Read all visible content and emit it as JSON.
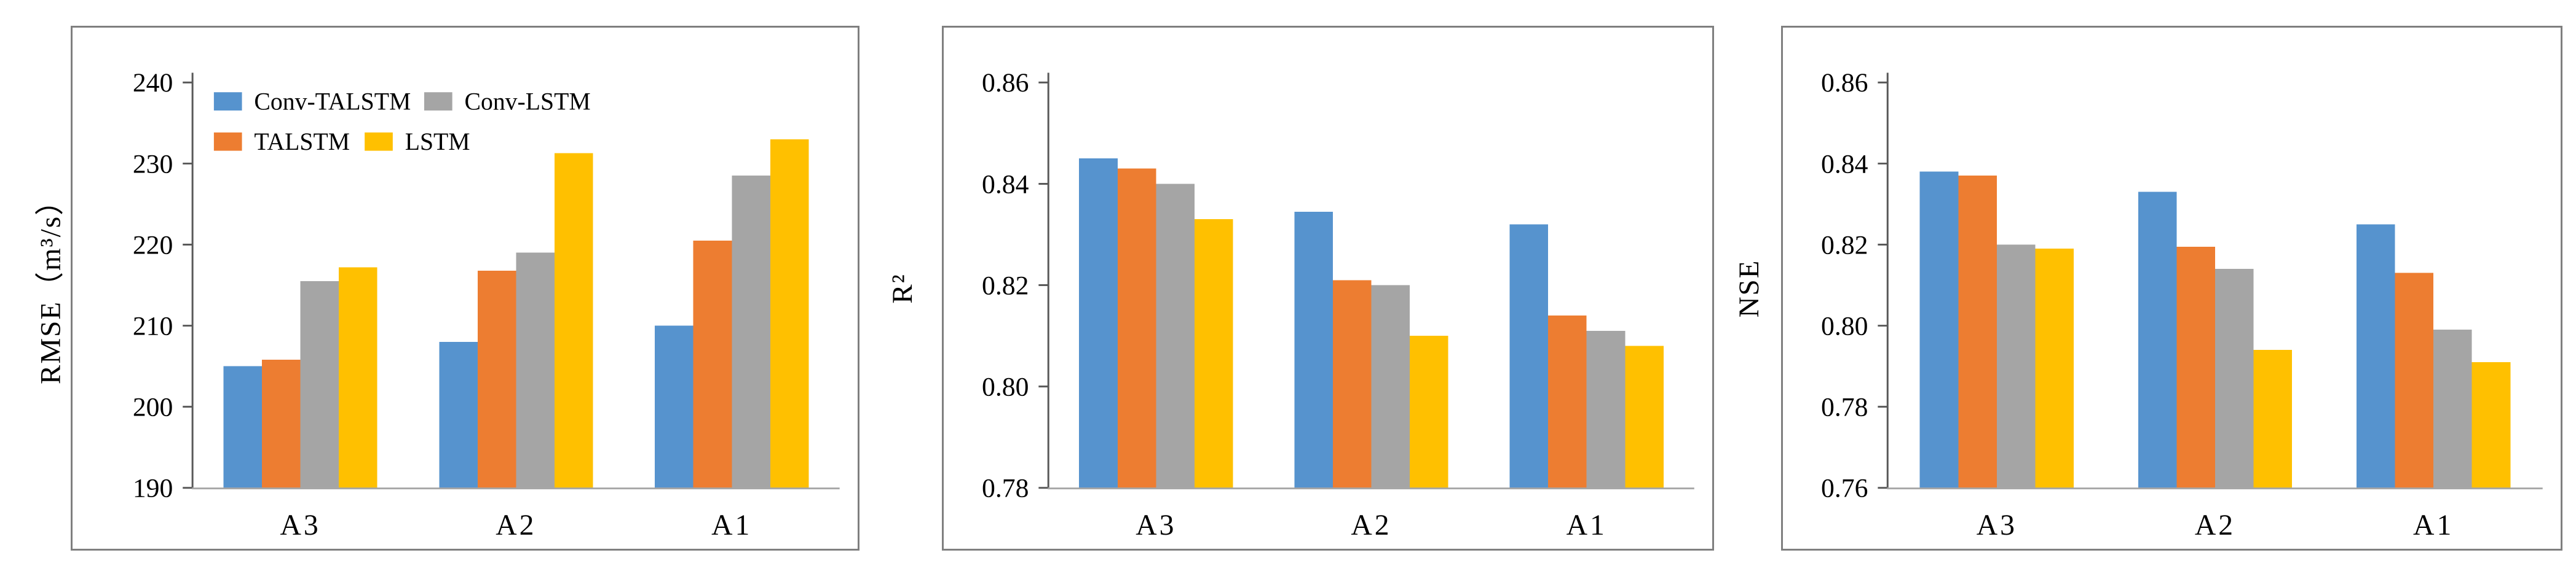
{
  "figure": {
    "series_colors": {
      "Conv-TALSTM": "#5693CE",
      "TALSTM": "#ED7D31",
      "Conv-LSTM": "#A5A5A5",
      "LSTM": "#FFC000"
    },
    "legend": {
      "rows": [
        [
          {
            "label": "Conv-TALSTM",
            "series": "Conv-TALSTM"
          },
          {
            "label": "Conv-LSTM",
            "series": "Conv-LSTM"
          }
        ],
        [
          {
            "label": "TALSTM",
            "series": "TALSTM"
          },
          {
            "label": "LSTM",
            "series": "LSTM"
          }
        ]
      ]
    }
  },
  "chart_data": [
    {
      "type": "bar",
      "title": "",
      "xlabel": "",
      "ylabel": "RMSE（m³/s）",
      "categories": [
        "A3",
        "A2",
        "A1"
      ],
      "series": [
        {
          "name": "Conv-TALSTM",
          "values": [
            205,
            208,
            210
          ]
        },
        {
          "name": "TALSTM",
          "values": [
            205.8,
            216.8,
            220.5
          ]
        },
        {
          "name": "Conv-LSTM",
          "values": [
            215.5,
            219,
            228.5
          ]
        },
        {
          "name": "LSTM",
          "values": [
            217.2,
            231.3,
            233
          ]
        }
      ],
      "ylim": [
        190,
        240
      ],
      "yticks": [
        190,
        200,
        210,
        220,
        230,
        240
      ],
      "ytick_decimals": 0,
      "grid": false,
      "legend_position": "top-left-inside"
    },
    {
      "type": "bar",
      "title": "",
      "xlabel": "",
      "ylabel": "R²",
      "categories": [
        "A3",
        "A2",
        "A1"
      ],
      "series": [
        {
          "name": "Conv-TALSTM",
          "values": [
            0.845,
            0.8345,
            0.832
          ]
        },
        {
          "name": "TALSTM",
          "values": [
            0.843,
            0.821,
            0.814
          ]
        },
        {
          "name": "Conv-LSTM",
          "values": [
            0.84,
            0.82,
            0.811
          ]
        },
        {
          "name": "LSTM",
          "values": [
            0.833,
            0.81,
            0.808
          ]
        }
      ],
      "ylim": [
        0.78,
        0.86
      ],
      "yticks": [
        0.78,
        0.8,
        0.82,
        0.84,
        0.86
      ],
      "ytick_decimals": 2,
      "grid": false,
      "legend_position": "none"
    },
    {
      "type": "bar",
      "title": "",
      "xlabel": "",
      "ylabel": "NSE",
      "categories": [
        "A3",
        "A2",
        "A1"
      ],
      "series": [
        {
          "name": "Conv-TALSTM",
          "values": [
            0.838,
            0.833,
            0.825
          ]
        },
        {
          "name": "TALSTM",
          "values": [
            0.837,
            0.8195,
            0.813
          ]
        },
        {
          "name": "Conv-LSTM",
          "values": [
            0.82,
            0.814,
            0.799
          ]
        },
        {
          "name": "LSTM",
          "values": [
            0.819,
            0.794,
            0.791
          ]
        }
      ],
      "ylim": [
        0.76,
        0.86
      ],
      "yticks": [
        0.76,
        0.78,
        0.8,
        0.82,
        0.84,
        0.86
      ],
      "ytick_decimals": 2,
      "grid": false,
      "legend_position": "none"
    }
  ]
}
